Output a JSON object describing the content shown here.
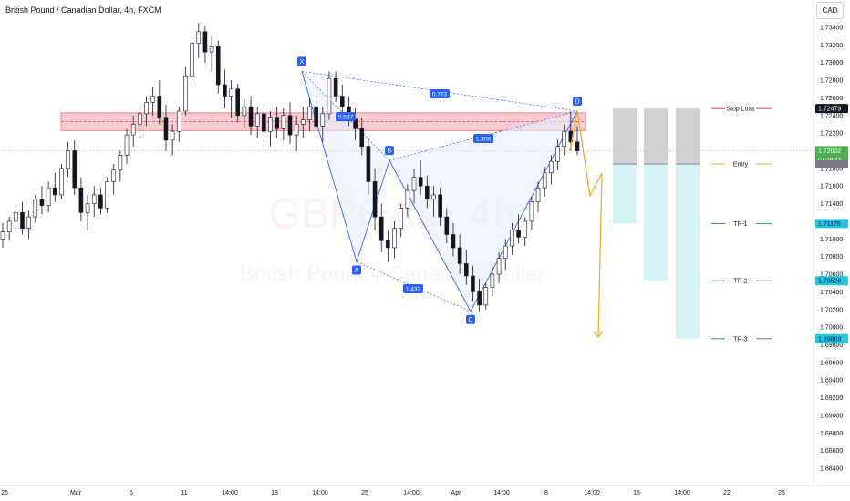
{
  "header": {
    "title": "British Pound / Canadian Dollar, 4h, FXCM",
    "currency": "CAD"
  },
  "watermark": {
    "symbol": "GBPCAD, 4h",
    "name": "British Pound / Canadian Dollar"
  },
  "colors": {
    "up": "#131722",
    "down": "#131722",
    "pattern_line": "#2962ff",
    "pattern_fill": "#e8eefc",
    "zone_fill": "#f7b7be",
    "zone_border": "#f23645",
    "projection": "#f5a623",
    "stop_zone": "#c8c8c8",
    "target_zone": "#d6f3f8",
    "sl_line": "#f23645",
    "entry_line": "#f5a623",
    "tp_line": "#2ea043",
    "tp_badge": "#22c3e6",
    "price_badge": "#131722",
    "last_badge": "#4caf50"
  },
  "chart_data": {
    "type": "candlestick",
    "title": "British Pound / Canadian Dollar, 4h, FXCM",
    "x_ticks": [
      "26",
      "Mar",
      "6",
      "11",
      "14:00",
      "18",
      "14:00",
      "25",
      "14:00",
      "Apr",
      "14:00",
      "8",
      "14:00",
      "15",
      "14:00",
      "22",
      "25"
    ],
    "y_ticks": [
      "1.73400",
      "1.73200",
      "1.73000",
      "1.72800",
      "1.72600",
      "1.72400",
      "1.72200",
      "1.72000",
      "1.71800",
      "1.71600",
      "1.71400",
      "1.71200",
      "1.71000",
      "1.70800",
      "1.70600",
      "1.70400",
      "1.70200",
      "1.70000",
      "1.69800",
      "1.69600",
      "1.69400",
      "1.69200",
      "1.69000",
      "1.68800",
      "1.68600",
      "1.68400"
    ],
    "ylim": [
      1.6832,
      1.7354
    ],
    "harmonic_pattern": {
      "points": [
        {
          "label": "X",
          "price": 1.729
        },
        {
          "label": "A",
          "price": 1.7074
        },
        {
          "label": "B",
          "price": 1.7189
        },
        {
          "label": "C",
          "price": 1.7018
        },
        {
          "label": "D",
          "price": 1.7245
        }
      ],
      "ratios": [
        {
          "label": "0.773",
          "between": "X-D"
        },
        {
          "label": "0.537",
          "between": "X-B"
        },
        {
          "label": "1.306",
          "between": "B-D"
        },
        {
          "label": "1.432",
          "between": "A-C"
        }
      ]
    },
    "resistance_zone": {
      "top": 1.7243,
      "bottom": 1.7223,
      "mid": 1.7233
    },
    "levels": [
      {
        "name": "Stop Loss",
        "price": 1.72479
      },
      {
        "name": "Entry",
        "price": 1.7185
      },
      {
        "name": "TP-1",
        "price": 1.71175
      },
      {
        "name": "TP-2",
        "price": 1.70526
      },
      {
        "name": "TP-3",
        "price": 1.69869
      }
    ],
    "price_badges": [
      {
        "label": "1.72479",
        "price": 1.72479
      },
      {
        "label": "1.72002",
        "price": 1.72002,
        "sub": "03:29:43"
      },
      {
        "label": "1.71175",
        "price": 1.71175
      },
      {
        "label": "1.70526",
        "price": 1.70526
      },
      {
        "label": "1.69869",
        "price": 1.69869
      }
    ],
    "candles": [
      [
        1.71,
        1.7118,
        1.709,
        1.7108
      ],
      [
        1.7108,
        1.7125,
        1.7098,
        1.712
      ],
      [
        1.712,
        1.7138,
        1.7112,
        1.713
      ],
      [
        1.713,
        1.7142,
        1.7105,
        1.7112
      ],
      [
        1.7112,
        1.7132,
        1.71,
        1.7125
      ],
      [
        1.7125,
        1.715,
        1.7118,
        1.7145
      ],
      [
        1.7145,
        1.716,
        1.7128,
        1.7138
      ],
      [
        1.7138,
        1.7165,
        1.713,
        1.7158
      ],
      [
        1.7158,
        1.7175,
        1.7142,
        1.715
      ],
      [
        1.715,
        1.7185,
        1.7145,
        1.718
      ],
      [
        1.718,
        1.721,
        1.717,
        1.72
      ],
      [
        1.72,
        1.7212,
        1.715,
        1.7158
      ],
      [
        1.7158,
        1.717,
        1.712,
        1.713
      ],
      [
        1.713,
        1.715,
        1.711,
        1.714
      ],
      [
        1.714,
        1.716,
        1.7125,
        1.715
      ],
      [
        1.715,
        1.7158,
        1.7128,
        1.7135
      ],
      [
        1.7135,
        1.717,
        1.713,
        1.7165
      ],
      [
        1.7165,
        1.7185,
        1.715,
        1.7178
      ],
      [
        1.7178,
        1.72,
        1.7165,
        1.7195
      ],
      [
        1.7195,
        1.7225,
        1.7185,
        1.7218
      ],
      [
        1.7218,
        1.724,
        1.7205,
        1.723
      ],
      [
        1.723,
        1.7248,
        1.7215,
        1.7242
      ],
      [
        1.7242,
        1.7262,
        1.7228,
        1.7255
      ],
      [
        1.7255,
        1.7272,
        1.724,
        1.7262
      ],
      [
        1.7262,
        1.728,
        1.723,
        1.7238
      ],
      [
        1.7238,
        1.7252,
        1.72,
        1.7212
      ],
      [
        1.7212,
        1.723,
        1.7195,
        1.7222
      ],
      [
        1.7222,
        1.725,
        1.721,
        1.7245
      ],
      [
        1.7245,
        1.7295,
        1.724,
        1.7285
      ],
      [
        1.7285,
        1.733,
        1.7275,
        1.7322
      ],
      [
        1.7322,
        1.7345,
        1.7305,
        1.7335
      ],
      [
        1.7335,
        1.7342,
        1.73,
        1.7312
      ],
      [
        1.7312,
        1.733,
        1.729,
        1.7318
      ],
      [
        1.7318,
        1.7325,
        1.7265,
        1.7275
      ],
      [
        1.7275,
        1.7292,
        1.7248,
        1.7262
      ],
      [
        1.7262,
        1.728,
        1.7238,
        1.727
      ],
      [
        1.727,
        1.7276,
        1.7232,
        1.724
      ],
      [
        1.724,
        1.7258,
        1.7225,
        1.725
      ],
      [
        1.725,
        1.7262,
        1.7218,
        1.7228
      ],
      [
        1.7228,
        1.725,
        1.7215,
        1.7242
      ],
      [
        1.7242,
        1.7255,
        1.721,
        1.7222
      ],
      [
        1.7222,
        1.7245,
        1.7205,
        1.7238
      ],
      [
        1.7238,
        1.725,
        1.7215,
        1.7225
      ],
      [
        1.7225,
        1.7248,
        1.7212,
        1.724
      ],
      [
        1.724,
        1.7255,
        1.7208,
        1.7218
      ],
      [
        1.7218,
        1.724,
        1.72,
        1.723
      ],
      [
        1.723,
        1.725,
        1.7215,
        1.7235
      ],
      [
        1.7235,
        1.726,
        1.7222,
        1.725
      ],
      [
        1.725,
        1.7262,
        1.7218,
        1.7228
      ],
      [
        1.7228,
        1.725,
        1.721,
        1.7242
      ],
      [
        1.7242,
        1.729,
        1.7235,
        1.7282
      ],
      [
        1.7282,
        1.729,
        1.7255,
        1.7262
      ],
      [
        1.7262,
        1.7275,
        1.724,
        1.725
      ],
      [
        1.725,
        1.7262,
        1.7228,
        1.7236
      ],
      [
        1.7236,
        1.7248,
        1.7212,
        1.7225
      ],
      [
        1.7225,
        1.7238,
        1.7195,
        1.7205
      ],
      [
        1.7205,
        1.7215,
        1.715,
        1.7165
      ],
      [
        1.7165,
        1.718,
        1.711,
        1.7125
      ],
      [
        1.7125,
        1.714,
        1.7085,
        1.7098
      ],
      [
        1.7098,
        1.711,
        1.7074,
        1.709
      ],
      [
        1.709,
        1.712,
        1.7078,
        1.7112
      ],
      [
        1.7112,
        1.714,
        1.7102,
        1.7135
      ],
      [
        1.7135,
        1.7162,
        1.7125,
        1.7155
      ],
      [
        1.7155,
        1.718,
        1.714,
        1.717
      ],
      [
        1.717,
        1.7189,
        1.715,
        1.716
      ],
      [
        1.716,
        1.7172,
        1.7135,
        1.7145
      ],
      [
        1.7145,
        1.716,
        1.7125,
        1.715
      ],
      [
        1.715,
        1.7158,
        1.7115,
        1.7125
      ],
      [
        1.7125,
        1.7135,
        1.7095,
        1.7105
      ],
      [
        1.7105,
        1.7118,
        1.708,
        1.709
      ],
      [
        1.709,
        1.7105,
        1.706,
        1.7072
      ],
      [
        1.7072,
        1.7088,
        1.7048,
        1.7058
      ],
      [
        1.7058,
        1.707,
        1.703,
        1.704
      ],
      [
        1.704,
        1.7055,
        1.7018,
        1.7025
      ],
      [
        1.7025,
        1.705,
        1.702,
        1.7045
      ],
      [
        1.7045,
        1.7068,
        1.7035,
        1.706
      ],
      [
        1.706,
        1.7085,
        1.705,
        1.7078
      ],
      [
        1.7078,
        1.71,
        1.7065,
        1.7092
      ],
      [
        1.7092,
        1.7118,
        1.7082,
        1.711
      ],
      [
        1.711,
        1.7128,
        1.7095,
        1.7102
      ],
      [
        1.7102,
        1.7125,
        1.7092,
        1.712
      ],
      [
        1.712,
        1.7148,
        1.711,
        1.7142
      ],
      [
        1.7142,
        1.7165,
        1.713,
        1.7158
      ],
      [
        1.7158,
        1.7182,
        1.7148,
        1.7175
      ],
      [
        1.7175,
        1.7195,
        1.7162,
        1.7188
      ],
      [
        1.7188,
        1.7212,
        1.7178,
        1.7205
      ],
      [
        1.7205,
        1.723,
        1.7195,
        1.7222
      ],
      [
        1.7222,
        1.7245,
        1.72,
        1.721
      ],
      [
        1.721,
        1.7228,
        1.7195,
        1.72
      ]
    ]
  }
}
